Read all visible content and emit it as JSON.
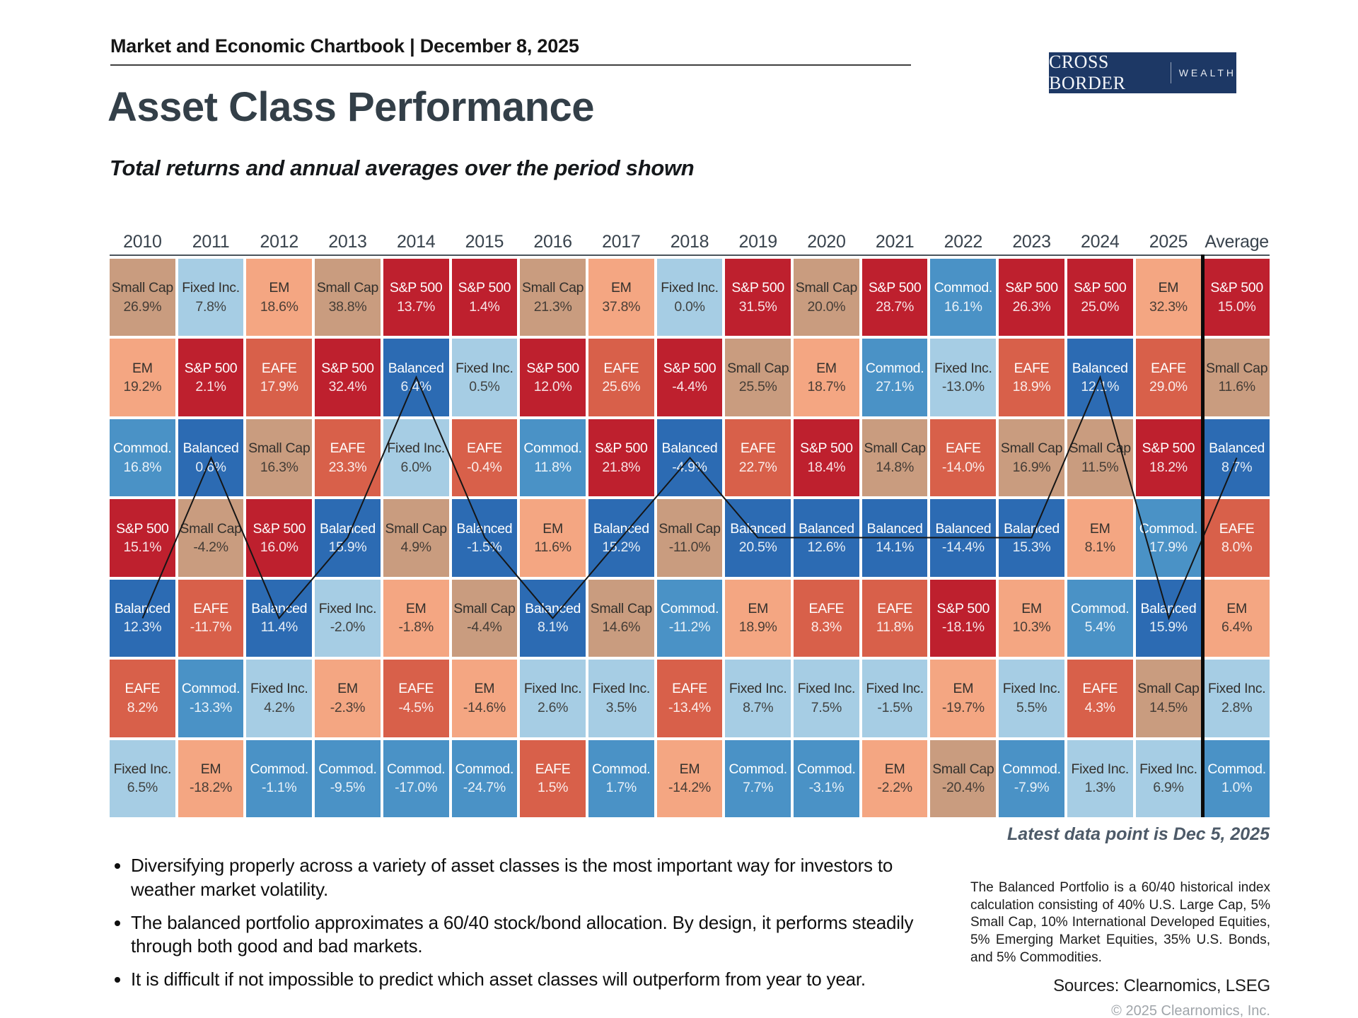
{
  "header": {
    "chartbook_label": "Market and Economic Chartbook | December 8, 2025",
    "logo_primary": "CROSS BORDER",
    "logo_secondary": "WEALTH",
    "title": "Asset Class Performance",
    "subtitle": "Total returns and annual averages over the period shown"
  },
  "chart_data": {
    "type": "table",
    "title": "Asset Class Performance",
    "subtitle": "Total returns and annual averages over the period shown",
    "columns": [
      "2010",
      "2011",
      "2012",
      "2013",
      "2014",
      "2015",
      "2016",
      "2017",
      "2018",
      "2019",
      "2020",
      "2021",
      "2022",
      "2023",
      "2024",
      "2025",
      "Average"
    ],
    "rows": [
      [
        {
          "asset": "Small Cap",
          "value": "26.9%"
        },
        {
          "asset": "Fixed Inc.",
          "value": "7.8%"
        },
        {
          "asset": "EM",
          "value": "18.6%"
        },
        {
          "asset": "Small Cap",
          "value": "38.8%"
        },
        {
          "asset": "S&P 500",
          "value": "13.7%"
        },
        {
          "asset": "S&P 500",
          "value": "1.4%"
        },
        {
          "asset": "Small Cap",
          "value": "21.3%"
        },
        {
          "asset": "EM",
          "value": "37.8%"
        },
        {
          "asset": "Fixed Inc.",
          "value": "0.0%"
        },
        {
          "asset": "S&P 500",
          "value": "31.5%"
        },
        {
          "asset": "Small Cap",
          "value": "20.0%"
        },
        {
          "asset": "S&P 500",
          "value": "28.7%"
        },
        {
          "asset": "Commod.",
          "value": "16.1%"
        },
        {
          "asset": "S&P 500",
          "value": "26.3%"
        },
        {
          "asset": "S&P 500",
          "value": "25.0%"
        },
        {
          "asset": "EM",
          "value": "32.3%"
        },
        {
          "asset": "S&P 500",
          "value": "15.0%"
        }
      ],
      [
        {
          "asset": "EM",
          "value": "19.2%"
        },
        {
          "asset": "S&P 500",
          "value": "2.1%"
        },
        {
          "asset": "EAFE",
          "value": "17.9%"
        },
        {
          "asset": "S&P 500",
          "value": "32.4%"
        },
        {
          "asset": "Balanced",
          "value": "6.4%"
        },
        {
          "asset": "Fixed Inc.",
          "value": "0.5%"
        },
        {
          "asset": "S&P 500",
          "value": "12.0%"
        },
        {
          "asset": "EAFE",
          "value": "25.6%"
        },
        {
          "asset": "S&P 500",
          "value": "-4.4%"
        },
        {
          "asset": "Small Cap",
          "value": "25.5%"
        },
        {
          "asset": "EM",
          "value": "18.7%"
        },
        {
          "asset": "Commod.",
          "value": "27.1%"
        },
        {
          "asset": "Fixed Inc.",
          "value": "-13.0%"
        },
        {
          "asset": "EAFE",
          "value": "18.9%"
        },
        {
          "asset": "Balanced",
          "value": "12.1%"
        },
        {
          "asset": "EAFE",
          "value": "29.0%"
        },
        {
          "asset": "Small Cap",
          "value": "11.6%"
        }
      ],
      [
        {
          "asset": "Commod.",
          "value": "16.8%"
        },
        {
          "asset": "Balanced",
          "value": "0.6%"
        },
        {
          "asset": "Small Cap",
          "value": "16.3%"
        },
        {
          "asset": "EAFE",
          "value": "23.3%"
        },
        {
          "asset": "Fixed Inc.",
          "value": "6.0%"
        },
        {
          "asset": "EAFE",
          "value": "-0.4%"
        },
        {
          "asset": "Commod.",
          "value": "11.8%"
        },
        {
          "asset": "S&P 500",
          "value": "21.8%"
        },
        {
          "asset": "Balanced",
          "value": "-4.9%"
        },
        {
          "asset": "EAFE",
          "value": "22.7%"
        },
        {
          "asset": "S&P 500",
          "value": "18.4%"
        },
        {
          "asset": "Small Cap",
          "value": "14.8%"
        },
        {
          "asset": "EAFE",
          "value": "-14.0%"
        },
        {
          "asset": "Small Cap",
          "value": "16.9%"
        },
        {
          "asset": "Small Cap",
          "value": "11.5%"
        },
        {
          "asset": "S&P 500",
          "value": "18.2%"
        },
        {
          "asset": "Balanced",
          "value": "8.7%"
        }
      ],
      [
        {
          "asset": "S&P 500",
          "value": "15.1%"
        },
        {
          "asset": "Small Cap",
          "value": "-4.2%"
        },
        {
          "asset": "S&P 500",
          "value": "16.0%"
        },
        {
          "asset": "Balanced",
          "value": "15.9%"
        },
        {
          "asset": "Small Cap",
          "value": "4.9%"
        },
        {
          "asset": "Balanced",
          "value": "-1.5%"
        },
        {
          "asset": "EM",
          "value": "11.6%"
        },
        {
          "asset": "Balanced",
          "value": "15.2%"
        },
        {
          "asset": "Small Cap",
          "value": "-11.0%"
        },
        {
          "asset": "Balanced",
          "value": "20.5%"
        },
        {
          "asset": "Balanced",
          "value": "12.6%"
        },
        {
          "asset": "Balanced",
          "value": "14.1%"
        },
        {
          "asset": "Balanced",
          "value": "-14.4%"
        },
        {
          "asset": "Balanced",
          "value": "15.3%"
        },
        {
          "asset": "EM",
          "value": "8.1%"
        },
        {
          "asset": "Commod.",
          "value": "17.9%"
        },
        {
          "asset": "EAFE",
          "value": "8.0%"
        }
      ],
      [
        {
          "asset": "Balanced",
          "value": "12.3%"
        },
        {
          "asset": "EAFE",
          "value": "-11.7%"
        },
        {
          "asset": "Balanced",
          "value": "11.4%"
        },
        {
          "asset": "Fixed Inc.",
          "value": "-2.0%"
        },
        {
          "asset": "EM",
          "value": "-1.8%"
        },
        {
          "asset": "Small Cap",
          "value": "-4.4%"
        },
        {
          "asset": "Balanced",
          "value": "8.1%"
        },
        {
          "asset": "Small Cap",
          "value": "14.6%"
        },
        {
          "asset": "Commod.",
          "value": "-11.2%"
        },
        {
          "asset": "EM",
          "value": "18.9%"
        },
        {
          "asset": "EAFE",
          "value": "8.3%"
        },
        {
          "asset": "EAFE",
          "value": "11.8%"
        },
        {
          "asset": "S&P 500",
          "value": "-18.1%"
        },
        {
          "asset": "EM",
          "value": "10.3%"
        },
        {
          "asset": "Commod.",
          "value": "5.4%"
        },
        {
          "asset": "Balanced",
          "value": "15.9%"
        },
        {
          "asset": "EM",
          "value": "6.4%"
        }
      ],
      [
        {
          "asset": "EAFE",
          "value": "8.2%"
        },
        {
          "asset": "Commod.",
          "value": "-13.3%"
        },
        {
          "asset": "Fixed Inc.",
          "value": "4.2%"
        },
        {
          "asset": "EM",
          "value": "-2.3%"
        },
        {
          "asset": "EAFE",
          "value": "-4.5%"
        },
        {
          "asset": "EM",
          "value": "-14.6%"
        },
        {
          "asset": "Fixed Inc.",
          "value": "2.6%"
        },
        {
          "asset": "Fixed Inc.",
          "value": "3.5%"
        },
        {
          "asset": "EAFE",
          "value": "-13.4%"
        },
        {
          "asset": "Fixed Inc.",
          "value": "8.7%"
        },
        {
          "asset": "Fixed Inc.",
          "value": "7.5%"
        },
        {
          "asset": "Fixed Inc.",
          "value": "-1.5%"
        },
        {
          "asset": "EM",
          "value": "-19.7%"
        },
        {
          "asset": "Fixed Inc.",
          "value": "5.5%"
        },
        {
          "asset": "EAFE",
          "value": "4.3%"
        },
        {
          "asset": "Small Cap",
          "value": "14.5%"
        },
        {
          "asset": "Fixed Inc.",
          "value": "2.8%"
        }
      ],
      [
        {
          "asset": "Fixed Inc.",
          "value": "6.5%"
        },
        {
          "asset": "EM",
          "value": "-18.2%"
        },
        {
          "asset": "Commod.",
          "value": "-1.1%"
        },
        {
          "asset": "Commod.",
          "value": "-9.5%"
        },
        {
          "asset": "Commod.",
          "value": "-17.0%"
        },
        {
          "asset": "Commod.",
          "value": "-24.7%"
        },
        {
          "asset": "EAFE",
          "value": "1.5%"
        },
        {
          "asset": "Commod.",
          "value": "1.7%"
        },
        {
          "asset": "EM",
          "value": "-14.2%"
        },
        {
          "asset": "Commod.",
          "value": "7.7%"
        },
        {
          "asset": "Commod.",
          "value": "-3.1%"
        },
        {
          "asset": "EM",
          "value": "-2.2%"
        },
        {
          "asset": "Small Cap",
          "value": "-20.4%"
        },
        {
          "asset": "Commod.",
          "value": "-7.9%"
        },
        {
          "asset": "Fixed Inc.",
          "value": "1.3%"
        },
        {
          "asset": "Fixed Inc.",
          "value": "6.9%"
        },
        {
          "asset": "Commod.",
          "value": "1.0%"
        }
      ]
    ],
    "asset_colors": {
      "S&P 500": {
        "bg": "#be202e",
        "fg": "#ffffff"
      },
      "EAFE": {
        "bg": "#d8604a",
        "fg": "#ffffff"
      },
      "EM": {
        "bg": "#f4a682",
        "fg": "#33302c"
      },
      "Small Cap": {
        "bg": "#c99c7f",
        "fg": "#33302c"
      },
      "Balanced": {
        "bg": "#2c6bb3",
        "fg": "#ffffff"
      },
      "Commod.": {
        "bg": "#4a92c6",
        "fg": "#ffffff"
      },
      "Fixed Inc.": {
        "bg": "#a6cde4",
        "fg": "#33302c"
      }
    },
    "trace_asset": "Balanced",
    "trace_color": "#151515",
    "separator_before_column": "Average",
    "note": "Latest data point is Dec 5, 2025"
  },
  "footnotes": {
    "bullets": [
      "Diversifying properly across a variety of asset classes is the most important way for investors to weather market volatility.",
      "The balanced portfolio approximates a 60/40 stock/bond allocation. By design, it performs steadily through both good and bad markets.",
      "It is difficult if not impossible to predict which asset classes will outperform from year to year."
    ],
    "balanced_note": "The Balanced Portfolio is a 60/40 historical index calculation consisting of 40% U.S. Large Cap, 5% Small Cap, 10% International Developed Equities, 5% Emerging Market Equities, 35% U.S. Bonds, and 5% Commodities.",
    "sources": "Sources: Clearnomics, LSEG",
    "copyright": "© 2025 Clearnomics, Inc."
  }
}
